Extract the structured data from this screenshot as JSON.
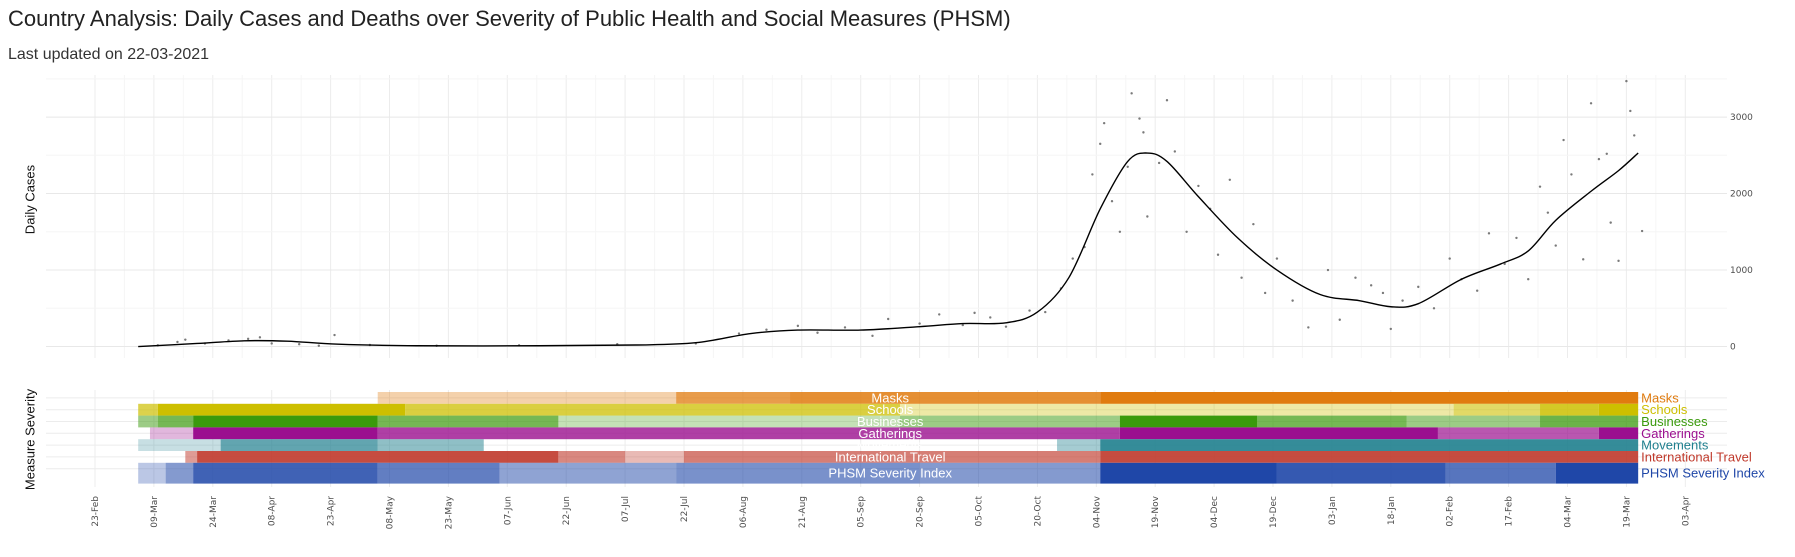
{
  "header": {
    "title": "Country Analysis: Daily Cases and Deaths over Severity of Public Health and Social Measures (PHSM)",
    "subtitle": "Last updated on 22-03-2021"
  },
  "chart_data": [
    {
      "type": "scatter",
      "ylabel": "Daily Cases",
      "xlabel": "",
      "ylim": [
        -150,
        3550
      ],
      "y_ticks": [
        0,
        1000,
        2000,
        3000
      ],
      "x_ticks": [
        "23-Feb",
        "09-Mar",
        "24-Mar",
        "08-Apr",
        "23-Apr",
        "08-May",
        "23-May",
        "07-Jun",
        "22-Jun",
        "07-Jul",
        "22-Jul",
        "06-Aug",
        "21-Aug",
        "05-Sep",
        "20-Sep",
        "05-Oct",
        "20-Oct",
        "04-Nov",
        "19-Nov",
        "04-Dec",
        "19-Dec",
        "03-Jan",
        "18-Jan",
        "02-Feb",
        "17-Feb",
        "04-Mar",
        "19-Mar",
        "03-Apr"
      ],
      "grid": true,
      "trend": [
        {
          "x": "2020-03-05",
          "y": 0
        },
        {
          "x": "2020-03-20",
          "y": 40
        },
        {
          "x": "2020-04-01",
          "y": 75
        },
        {
          "x": "2020-04-12",
          "y": 70
        },
        {
          "x": "2020-04-25",
          "y": 30
        },
        {
          "x": "2020-05-15",
          "y": 10
        },
        {
          "x": "2020-06-15",
          "y": 10
        },
        {
          "x": "2020-07-10",
          "y": 20
        },
        {
          "x": "2020-07-25",
          "y": 50
        },
        {
          "x": "2020-08-08",
          "y": 170
        },
        {
          "x": "2020-08-20",
          "y": 215
        },
        {
          "x": "2020-09-05",
          "y": 215
        },
        {
          "x": "2020-09-20",
          "y": 260
        },
        {
          "x": "2020-10-01",
          "y": 300
        },
        {
          "x": "2020-10-12",
          "y": 310
        },
        {
          "x": "2020-10-20",
          "y": 450
        },
        {
          "x": "2020-10-28",
          "y": 900
        },
        {
          "x": "2020-11-05",
          "y": 1800
        },
        {
          "x": "2020-11-12",
          "y": 2420
        },
        {
          "x": "2020-11-17",
          "y": 2530
        },
        {
          "x": "2020-11-22",
          "y": 2420
        },
        {
          "x": "2020-11-30",
          "y": 1960
        },
        {
          "x": "2020-12-10",
          "y": 1420
        },
        {
          "x": "2020-12-20",
          "y": 1000
        },
        {
          "x": "2020-12-31",
          "y": 680
        },
        {
          "x": "2021-01-10",
          "y": 600
        },
        {
          "x": "2021-01-18",
          "y": 520
        },
        {
          "x": "2021-01-25",
          "y": 560
        },
        {
          "x": "2021-02-05",
          "y": 880
        },
        {
          "x": "2021-02-15",
          "y": 1080
        },
        {
          "x": "2021-02-22",
          "y": 1250
        },
        {
          "x": "2021-03-01",
          "y": 1650
        },
        {
          "x": "2021-03-10",
          "y": 2030
        },
        {
          "x": "2021-03-17",
          "y": 2300
        },
        {
          "x": "2021-03-22",
          "y": 2530
        }
      ],
      "points": [
        {
          "x": "2020-03-10",
          "y": 15
        },
        {
          "x": "2020-03-15",
          "y": 60
        },
        {
          "x": "2020-03-17",
          "y": 90
        },
        {
          "x": "2020-03-22",
          "y": 40
        },
        {
          "x": "2020-03-28",
          "y": 80
        },
        {
          "x": "2020-04-02",
          "y": 100
        },
        {
          "x": "2020-04-05",
          "y": 120
        },
        {
          "x": "2020-04-08",
          "y": 40
        },
        {
          "x": "2020-04-15",
          "y": 30
        },
        {
          "x": "2020-04-20",
          "y": 10
        },
        {
          "x": "2020-04-24",
          "y": 150
        },
        {
          "x": "2020-05-03",
          "y": 20
        },
        {
          "x": "2020-05-20",
          "y": 10
        },
        {
          "x": "2020-06-10",
          "y": 15
        },
        {
          "x": "2020-07-05",
          "y": 30
        },
        {
          "x": "2020-07-25",
          "y": 40
        },
        {
          "x": "2020-08-05",
          "y": 170
        },
        {
          "x": "2020-08-12",
          "y": 220
        },
        {
          "x": "2020-08-20",
          "y": 270
        },
        {
          "x": "2020-08-25",
          "y": 180
        },
        {
          "x": "2020-09-01",
          "y": 250
        },
        {
          "x": "2020-09-08",
          "y": 140
        },
        {
          "x": "2020-09-12",
          "y": 360
        },
        {
          "x": "2020-09-20",
          "y": 300
        },
        {
          "x": "2020-09-25",
          "y": 420
        },
        {
          "x": "2020-10-01",
          "y": 280
        },
        {
          "x": "2020-10-04",
          "y": 440
        },
        {
          "x": "2020-10-08",
          "y": 380
        },
        {
          "x": "2020-10-12",
          "y": 260
        },
        {
          "x": "2020-10-18",
          "y": 470
        },
        {
          "x": "2020-10-22",
          "y": 450
        },
        {
          "x": "2020-10-26",
          "y": 760
        },
        {
          "x": "2020-10-29",
          "y": 1150
        },
        {
          "x": "2020-11-01",
          "y": 1300
        },
        {
          "x": "2020-11-03",
          "y": 2250
        },
        {
          "x": "2020-11-05",
          "y": 2650
        },
        {
          "x": "2020-11-06",
          "y": 2920
        },
        {
          "x": "2020-11-08",
          "y": 1900
        },
        {
          "x": "2020-11-10",
          "y": 1500
        },
        {
          "x": "2020-11-12",
          "y": 2350
        },
        {
          "x": "2020-11-13",
          "y": 3310
        },
        {
          "x": "2020-11-15",
          "y": 2980
        },
        {
          "x": "2020-11-16",
          "y": 2800
        },
        {
          "x": "2020-11-17",
          "y": 1700
        },
        {
          "x": "2020-11-20",
          "y": 2400
        },
        {
          "x": "2020-11-22",
          "y": 3220
        },
        {
          "x": "2020-11-24",
          "y": 2550
        },
        {
          "x": "2020-11-27",
          "y": 1500
        },
        {
          "x": "2020-11-30",
          "y": 2100
        },
        {
          "x": "2020-12-03",
          "y": 1800
        },
        {
          "x": "2020-12-05",
          "y": 1200
        },
        {
          "x": "2020-12-08",
          "y": 2180
        },
        {
          "x": "2020-12-11",
          "y": 900
        },
        {
          "x": "2020-12-14",
          "y": 1600
        },
        {
          "x": "2020-12-17",
          "y": 700
        },
        {
          "x": "2020-12-20",
          "y": 1150
        },
        {
          "x": "2020-12-24",
          "y": 600
        },
        {
          "x": "2020-12-28",
          "y": 250
        },
        {
          "x": "2021-01-02",
          "y": 1000
        },
        {
          "x": "2021-01-05",
          "y": 350
        },
        {
          "x": "2021-01-09",
          "y": 900
        },
        {
          "x": "2021-01-13",
          "y": 800
        },
        {
          "x": "2021-01-16",
          "y": 700
        },
        {
          "x": "2021-01-18",
          "y": 230
        },
        {
          "x": "2021-01-21",
          "y": 600
        },
        {
          "x": "2021-01-25",
          "y": 780
        },
        {
          "x": "2021-01-29",
          "y": 500
        },
        {
          "x": "2021-02-02",
          "y": 1150
        },
        {
          "x": "2021-02-05",
          "y": 880
        },
        {
          "x": "2021-02-09",
          "y": 730
        },
        {
          "x": "2021-02-12",
          "y": 1480
        },
        {
          "x": "2021-02-16",
          "y": 1080
        },
        {
          "x": "2021-02-19",
          "y": 1420
        },
        {
          "x": "2021-02-22",
          "y": 880
        },
        {
          "x": "2021-02-25",
          "y": 2090
        },
        {
          "x": "2021-02-27",
          "y": 1750
        },
        {
          "x": "2021-03-01",
          "y": 1320
        },
        {
          "x": "2021-03-03",
          "y": 2700
        },
        {
          "x": "2021-03-05",
          "y": 2250
        },
        {
          "x": "2021-03-08",
          "y": 1140
        },
        {
          "x": "2021-03-10",
          "y": 3180
        },
        {
          "x": "2021-03-12",
          "y": 2450
        },
        {
          "x": "2021-03-14",
          "y": 2520
        },
        {
          "x": "2021-03-15",
          "y": 1620
        },
        {
          "x": "2021-03-17",
          "y": 1120
        },
        {
          "x": "2021-03-19",
          "y": 3470
        },
        {
          "x": "2021-03-20",
          "y": 3080
        },
        {
          "x": "2021-03-21",
          "y": 2760
        },
        {
          "x": "2021-03-23",
          "y": 1510
        }
      ]
    },
    {
      "type": "heatmap",
      "ylabel": "Measure Severity",
      "x_ticks": [
        "23-Feb",
        "09-Mar",
        "24-Mar",
        "08-Apr",
        "23-Apr",
        "08-May",
        "23-May",
        "07-Jun",
        "22-Jun",
        "07-Jul",
        "22-Jul",
        "06-Aug",
        "21-Aug",
        "05-Sep",
        "20-Sep",
        "05-Oct",
        "20-Oct",
        "04-Nov",
        "19-Nov",
        "04-Dec",
        "19-Dec",
        "03-Jan",
        "18-Jan",
        "02-Feb",
        "17-Feb",
        "04-Mar",
        "19-Mar",
        "03-Apr"
      ],
      "rows": [
        {
          "name": "Masks",
          "color": "#e07b0f",
          "segments": [
            {
              "start": "2020-05-05",
              "end": "2020-07-20",
              "level": 0.35
            },
            {
              "start": "2020-07-20",
              "end": "2020-08-18",
              "level": 0.75
            },
            {
              "start": "2020-08-18",
              "end": "2020-11-05",
              "level": 0.85
            },
            {
              "start": "2020-11-05",
              "end": "2021-03-22",
              "level": 1.0
            }
          ]
        },
        {
          "name": "Schools",
          "color": "#cdbf00",
          "segments": [
            {
              "start": "2020-03-05",
              "end": "2020-03-10",
              "level": 0.7
            },
            {
              "start": "2020-03-10",
              "end": "2020-05-12",
              "level": 1.0
            },
            {
              "start": "2020-05-12",
              "end": "2020-09-15",
              "level": 0.75
            },
            {
              "start": "2020-09-15",
              "end": "2021-02-03",
              "level": 0.35
            },
            {
              "start": "2021-02-03",
              "end": "2021-02-25",
              "level": 0.6
            },
            {
              "start": "2021-02-25",
              "end": "2021-03-12",
              "level": 0.85
            },
            {
              "start": "2021-03-12",
              "end": "2021-03-22",
              "level": 1.0
            }
          ]
        },
        {
          "name": "Businesses",
          "color": "#3a9a0c",
          "segments": [
            {
              "start": "2020-03-05",
              "end": "2020-03-10",
              "level": 0.5
            },
            {
              "start": "2020-03-10",
              "end": "2020-03-19",
              "level": 0.7
            },
            {
              "start": "2020-03-19",
              "end": "2020-05-05",
              "level": 1.0
            },
            {
              "start": "2020-05-05",
              "end": "2020-06-20",
              "level": 0.7
            },
            {
              "start": "2020-06-20",
              "end": "2020-09-15",
              "level": 0.3
            },
            {
              "start": "2020-09-15",
              "end": "2020-11-10",
              "level": 0.5
            },
            {
              "start": "2020-11-10",
              "end": "2020-12-15",
              "level": 1.0
            },
            {
              "start": "2020-12-15",
              "end": "2021-01-22",
              "level": 0.7
            },
            {
              "start": "2021-01-22",
              "end": "2021-02-25",
              "level": 0.5
            },
            {
              "start": "2021-02-25",
              "end": "2021-03-22",
              "level": 0.75
            }
          ]
        },
        {
          "name": "Gatherings",
          "color": "#9b0f8f",
          "segments": [
            {
              "start": "2020-03-08",
              "end": "2020-03-19",
              "level": 0.3
            },
            {
              "start": "2020-03-19",
              "end": "2020-05-05",
              "level": 1.0
            },
            {
              "start": "2020-05-05",
              "end": "2020-11-10",
              "level": 0.8
            },
            {
              "start": "2020-11-10",
              "end": "2021-01-30",
              "level": 1.0
            },
            {
              "start": "2021-01-30",
              "end": "2021-03-12",
              "level": 0.7
            },
            {
              "start": "2021-03-12",
              "end": "2021-03-22",
              "level": 1.0
            }
          ]
        },
        {
          "name": "Movements",
          "color": "#1f7f8e",
          "segments": [
            {
              "start": "2020-03-05",
              "end": "2020-03-26",
              "level": 0.25
            },
            {
              "start": "2020-03-26",
              "end": "2020-05-05",
              "level": 0.7
            },
            {
              "start": "2020-05-05",
              "end": "2020-06-01",
              "level": 0.5
            },
            {
              "start": "2020-10-25",
              "end": "2020-11-05",
              "level": 0.4
            },
            {
              "start": "2020-11-05",
              "end": "2021-03-22",
              "level": 0.9
            }
          ]
        },
        {
          "name": "International Travel",
          "color": "#c0392b",
          "segments": [
            {
              "start": "2020-03-17",
              "end": "2020-03-20",
              "level": 0.5
            },
            {
              "start": "2020-03-20",
              "end": "2020-06-20",
              "level": 0.9
            },
            {
              "start": "2020-06-20",
              "end": "2020-07-07",
              "level": 0.6
            },
            {
              "start": "2020-07-07",
              "end": "2020-07-22",
              "level": 0.35
            },
            {
              "start": "2020-07-22",
              "end": "2020-11-05",
              "level": 0.65
            },
            {
              "start": "2020-11-05",
              "end": "2021-03-22",
              "level": 0.9
            }
          ]
        },
        {
          "name": "PHSM Severity Index",
          "color": "#1f47a8",
          "segments": [
            {
              "start": "2020-03-05",
              "end": "2020-03-12",
              "level": 0.3
            },
            {
              "start": "2020-03-12",
              "end": "2020-03-19",
              "level": 0.55
            },
            {
              "start": "2020-03-19",
              "end": "2020-05-05",
              "level": 0.85
            },
            {
              "start": "2020-05-05",
              "end": "2020-06-05",
              "level": 0.7
            },
            {
              "start": "2020-06-05",
              "end": "2020-07-20",
              "level": 0.5
            },
            {
              "start": "2020-07-20",
              "end": "2020-09-20",
              "level": 0.6
            },
            {
              "start": "2020-09-20",
              "end": "2020-11-05",
              "level": 0.55
            },
            {
              "start": "2020-11-05",
              "end": "2020-12-20",
              "level": 1.0
            },
            {
              "start": "2020-12-20",
              "end": "2021-02-01",
              "level": 0.9
            },
            {
              "start": "2021-02-01",
              "end": "2021-03-01",
              "level": 0.75
            },
            {
              "start": "2021-03-01",
              "end": "2021-03-22",
              "level": 1.0
            }
          ]
        }
      ]
    }
  ]
}
